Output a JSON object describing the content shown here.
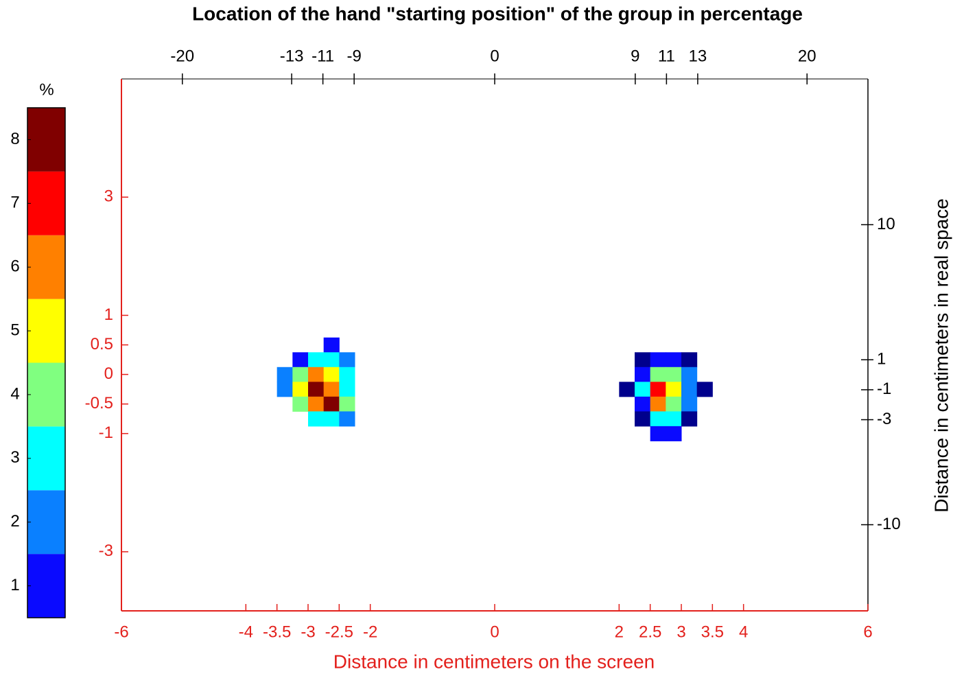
{
  "chart_data": {
    "type": "heatmap",
    "title": "Location of the hand \"starting position\" of the group in percentage",
    "xlabel": "Distance in centimeters on the screen",
    "y2label": "Distance in centimeters in real space",
    "axis_color": "#e3201c",
    "secondary_axis_color": "#000000",
    "xlim": [
      -6,
      6
    ],
    "xticks": [
      -6,
      -4,
      -3.5,
      -3,
      -2.5,
      -2,
      0,
      2,
      2.5,
      3,
      3.5,
      4,
      6
    ],
    "ylim": [
      -4,
      5
    ],
    "yticks": [
      -3,
      -1,
      -0.5,
      0,
      0.5,
      1,
      3
    ],
    "x2lim": [
      -23.9,
      23.9
    ],
    "x2ticks": [
      -20,
      -13,
      -11,
      -9,
      0,
      9,
      11,
      13,
      20
    ],
    "y2lim": [
      -15.74,
      19.72
    ],
    "y2ticks": [
      -10,
      -3,
      -1,
      1,
      10
    ],
    "cell_width": 0.25,
    "cell_height": 0.25,
    "colorbar": {
      "label": "%",
      "clim": [
        0.5,
        8.5
      ],
      "ticks": [
        1,
        2,
        3,
        4,
        5,
        6,
        7,
        8
      ],
      "colors": [
        "#0a0aff",
        "#0a80ff",
        "#00ffff",
        "#80ff80",
        "#ffff00",
        "#ff8000",
        "#ff0000",
        "#800000"
      ],
      "under_color": "#00008c"
    },
    "cells": [
      {
        "x": -2.625,
        "y": 0.5,
        "value": 1
      },
      {
        "x": -3.125,
        "y": 0.25,
        "value": 1
      },
      {
        "x": -2.875,
        "y": 0.25,
        "value": 3
      },
      {
        "x": -2.625,
        "y": 0.25,
        "value": 3
      },
      {
        "x": -2.375,
        "y": 0.25,
        "value": 2
      },
      {
        "x": -3.375,
        "y": 0,
        "value": 2
      },
      {
        "x": -3.125,
        "y": 0,
        "value": 4
      },
      {
        "x": -2.875,
        "y": 0,
        "value": 6
      },
      {
        "x": -2.625,
        "y": 0,
        "value": 5
      },
      {
        "x": -2.375,
        "y": 0,
        "value": 3
      },
      {
        "x": -3.375,
        "y": -0.25,
        "value": 2
      },
      {
        "x": -3.125,
        "y": -0.25,
        "value": 5
      },
      {
        "x": -2.875,
        "y": -0.25,
        "value": 8
      },
      {
        "x": -2.625,
        "y": -0.25,
        "value": 6
      },
      {
        "x": -2.375,
        "y": -0.25,
        "value": 3
      },
      {
        "x": -3.125,
        "y": -0.5,
        "value": 4
      },
      {
        "x": -2.875,
        "y": -0.5,
        "value": 6
      },
      {
        "x": -2.625,
        "y": -0.5,
        "value": 8
      },
      {
        "x": -2.375,
        "y": -0.5,
        "value": 4
      },
      {
        "x": -2.875,
        "y": -0.75,
        "value": 3
      },
      {
        "x": -2.625,
        "y": -0.75,
        "value": 3
      },
      {
        "x": -2.375,
        "y": -0.75,
        "value": 2
      },
      {
        "x": 2.375,
        "y": 0.25,
        "value": 0.4
      },
      {
        "x": 2.625,
        "y": 0.25,
        "value": 1
      },
      {
        "x": 2.875,
        "y": 0.25,
        "value": 1
      },
      {
        "x": 3.125,
        "y": 0.25,
        "value": 0.4
      },
      {
        "x": 2.375,
        "y": 0,
        "value": 1
      },
      {
        "x": 2.625,
        "y": 0,
        "value": 4
      },
      {
        "x": 2.875,
        "y": 0,
        "value": 4
      },
      {
        "x": 3.125,
        "y": 0,
        "value": 2
      },
      {
        "x": 2.125,
        "y": -0.25,
        "value": 0.4
      },
      {
        "x": 2.375,
        "y": -0.25,
        "value": 3
      },
      {
        "x": 2.625,
        "y": -0.25,
        "value": 7
      },
      {
        "x": 2.875,
        "y": -0.25,
        "value": 5
      },
      {
        "x": 3.125,
        "y": -0.25,
        "value": 2
      },
      {
        "x": 3.375,
        "y": -0.25,
        "value": 0.4
      },
      {
        "x": 2.375,
        "y": -0.5,
        "value": 1
      },
      {
        "x": 2.625,
        "y": -0.5,
        "value": 6
      },
      {
        "x": 2.875,
        "y": -0.5,
        "value": 4
      },
      {
        "x": 3.125,
        "y": -0.5,
        "value": 2
      },
      {
        "x": 2.375,
        "y": -0.75,
        "value": 0.4
      },
      {
        "x": 2.625,
        "y": -0.75,
        "value": 3
      },
      {
        "x": 2.875,
        "y": -0.75,
        "value": 3
      },
      {
        "x": 3.125,
        "y": -0.75,
        "value": 0.4
      },
      {
        "x": 2.625,
        "y": -1,
        "value": 1
      },
      {
        "x": 2.875,
        "y": -1,
        "value": 1
      }
    ]
  }
}
